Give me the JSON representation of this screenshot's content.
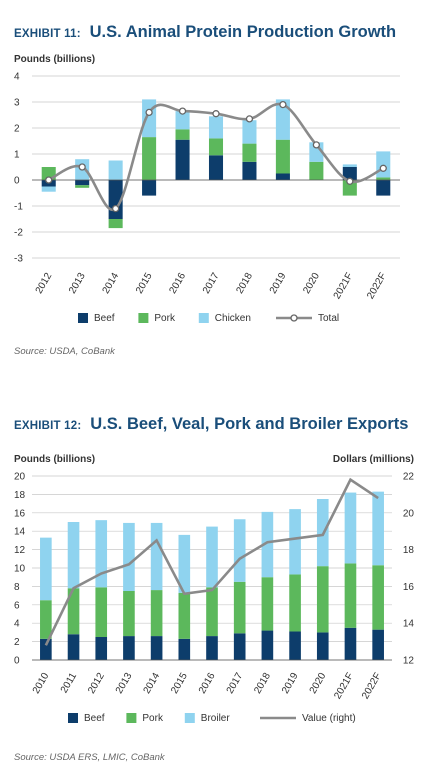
{
  "colors": {
    "beef": "#0d3d6b",
    "pork": "#5cb85c",
    "chicken": "#8fd3ef",
    "line": "#8a8a8a",
    "title": "#1a4e7a"
  },
  "exhibit11": {
    "tag": "EXHIBIT 11:",
    "name": "U.S. Animal Protein Production Growth",
    "source": "Source: USDA, CoBank"
  },
  "exhibit12": {
    "tag": "EXHIBIT 12:",
    "name": "U.S. Beef, Veal, Pork and Broiler Exports",
    "source": "Source: USDA ERS, LMIC, CoBank"
  },
  "chart_data": [
    {
      "type": "bar",
      "stacked": true,
      "title": "U.S. Animal Protein Production Growth",
      "ylabel": "Pounds (billions)",
      "ylim": [
        -3,
        4
      ],
      "yticks": [
        -3,
        -2,
        -1,
        0,
        1,
        2,
        3,
        4
      ],
      "grid": true,
      "legend_position": "bottom",
      "categories": [
        "2012",
        "2013",
        "2014",
        "2015",
        "2016",
        "2017",
        "2018",
        "2019",
        "2020",
        "2021F",
        "2022F"
      ],
      "series": [
        {
          "name": "Beef",
          "kind": "bar",
          "values": [
            -0.25,
            -0.2,
            -1.5,
            -0.6,
            1.55,
            0.95,
            0.7,
            0.25,
            0.0,
            0.5,
            -0.6
          ]
        },
        {
          "name": "Pork",
          "kind": "bar",
          "values": [
            0.5,
            -0.1,
            -0.35,
            1.65,
            0.4,
            0.65,
            0.7,
            1.3,
            0.7,
            -0.6,
            0.1
          ]
        },
        {
          "name": "Chicken",
          "kind": "bar",
          "values": [
            -0.2,
            0.8,
            0.75,
            1.45,
            0.7,
            0.85,
            0.9,
            1.55,
            0.75,
            0.1,
            1.0
          ]
        },
        {
          "name": "Total",
          "kind": "line",
          "values": [
            0.0,
            0.5,
            -1.1,
            2.6,
            2.65,
            2.55,
            2.35,
            2.9,
            1.35,
            -0.05,
            0.45
          ]
        }
      ]
    },
    {
      "type": "bar",
      "stacked": true,
      "title": "U.S. Beef, Veal, Pork and Broiler Exports",
      "ylabel": "Pounds (billions)",
      "y2label": "Dollars (millions)",
      "ylim": [
        0,
        20
      ],
      "yticks": [
        0,
        2,
        4,
        6,
        8,
        10,
        12,
        14,
        16,
        18,
        20
      ],
      "y2lim": [
        12,
        22
      ],
      "y2ticks": [
        12,
        14,
        16,
        18,
        20,
        22
      ],
      "grid": true,
      "legend_position": "bottom",
      "categories": [
        "2010",
        "2011",
        "2012",
        "2013",
        "2014",
        "2015",
        "2016",
        "2017",
        "2018",
        "2019",
        "2020",
        "2021F",
        "2022F"
      ],
      "series": [
        {
          "name": "Beef",
          "kind": "bar",
          "values": [
            2.3,
            2.8,
            2.5,
            2.6,
            2.6,
            2.3,
            2.6,
            2.9,
            3.2,
            3.1,
            3.0,
            3.5,
            3.3
          ]
        },
        {
          "name": "Pork",
          "kind": "bar",
          "values": [
            4.2,
            5.0,
            5.4,
            4.9,
            5.0,
            5.0,
            5.3,
            5.6,
            5.8,
            6.2,
            7.2,
            7.0,
            7.0
          ]
        },
        {
          "name": "Broiler",
          "kind": "bar",
          "values": [
            6.8,
            7.2,
            7.3,
            7.4,
            7.3,
            6.3,
            6.6,
            6.8,
            7.1,
            7.1,
            7.3,
            7.7,
            8.0
          ]
        },
        {
          "name": "Value (right)",
          "kind": "line",
          "axis": "right",
          "values": [
            12.8,
            15.9,
            16.7,
            17.2,
            18.5,
            15.6,
            15.8,
            17.5,
            18.4,
            18.6,
            18.8,
            21.8,
            20.8
          ]
        }
      ]
    }
  ]
}
